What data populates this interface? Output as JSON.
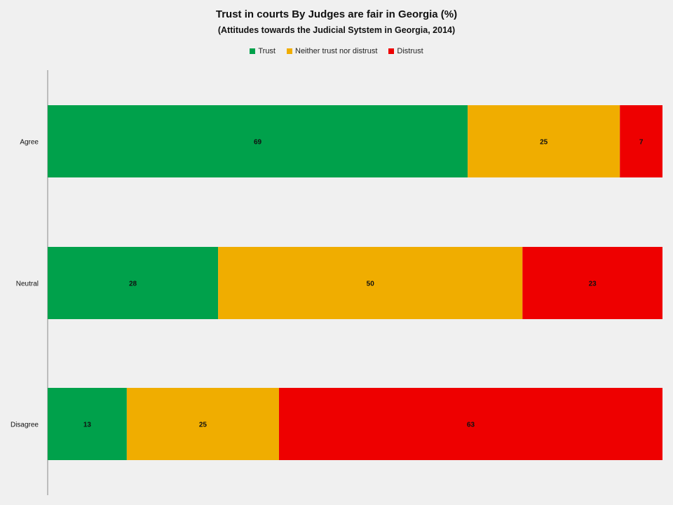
{
  "chart_data": {
    "type": "bar",
    "orientation": "horizontal",
    "stacked": true,
    "title": "Trust in courts By Judges are fair in Georgia (%)",
    "subtitle": "(Attitudes towards the Judicial Sytstem in Georgia, 2014)",
    "categories": [
      "Agree",
      "Neutral",
      "Disagree"
    ],
    "series": [
      {
        "name": "Trust",
        "values": [
          69,
          28,
          13
        ],
        "color": "#00a14b"
      },
      {
        "name": "Neither trust nor distrust",
        "values": [
          25,
          50,
          25
        ],
        "color": "#f0ad00"
      },
      {
        "name": "Distrust",
        "values": [
          7,
          23,
          63
        ],
        "color": "#ee0000"
      }
    ],
    "legend_position": "top-center",
    "grid": false
  }
}
